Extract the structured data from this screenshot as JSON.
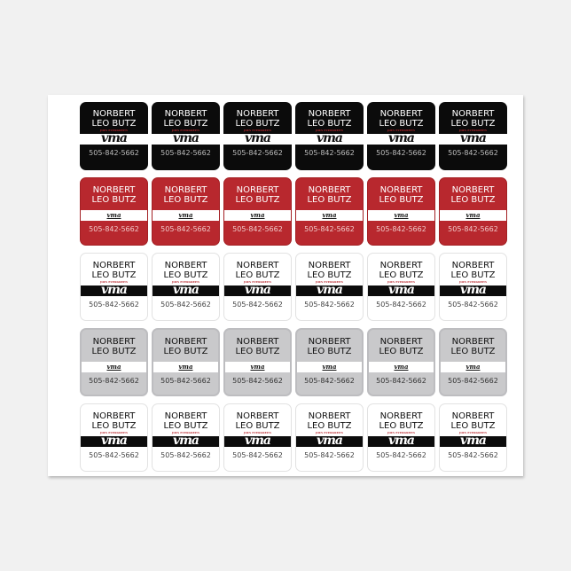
{
  "sticker": {
    "name_line1": "NORBERT",
    "name_line2": "LEO BUTZ",
    "logo": "vma",
    "logo_tagline": "JOIN EVERGREEN",
    "phone": "505-842-5662"
  },
  "rows": [
    {
      "style": "black",
      "logo_size": "large",
      "count": 6,
      "background": "#0b0b0b"
    },
    {
      "style": "red",
      "logo_size": "small",
      "count": 6,
      "background": "#b8282e"
    },
    {
      "style": "white",
      "logo_size": "large",
      "count": 6,
      "background": "#ffffff"
    },
    {
      "style": "grey",
      "logo_size": "small",
      "count": 6,
      "background": "#c9c9cb"
    },
    {
      "style": "white",
      "logo_size": "large",
      "count": 6,
      "background": "#ffffff"
    }
  ]
}
